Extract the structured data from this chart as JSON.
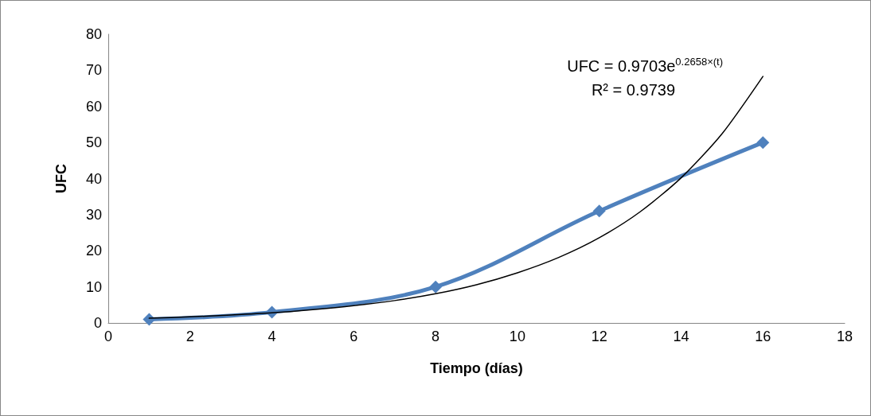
{
  "chart_data": {
    "type": "line",
    "xlabel": "Tiempo (días)",
    "ylabel": "UFC",
    "xlim": [
      0,
      18
    ],
    "xticks": [
      0,
      2,
      4,
      6,
      8,
      10,
      12,
      14,
      16,
      18
    ],
    "ylim": [
      0,
      80
    ],
    "yticks": [
      0,
      10,
      20,
      30,
      40,
      50,
      60,
      70,
      80
    ],
    "grid": false,
    "annotations": [
      "UFC = 0.9703e$^{0.2658×(t)}$",
      "R² = 0.9739"
    ],
    "series": [
      {
        "color": "#4f81bd",
        "x": [
          1,
          4,
          8,
          12,
          16
        ],
        "values": [
          1,
          3,
          10,
          31,
          50
        ],
        "marker": "diamond",
        "line_style": "solid"
      },
      {
        "color": "#000000",
        "x": [
          1,
          2,
          3,
          4,
          5,
          6,
          7,
          8,
          9,
          10,
          11,
          12,
          13,
          14,
          15,
          16
        ],
        "values": [
          1.3,
          1.7,
          2.2,
          2.8,
          3.7,
          4.8,
          6.2,
          8.1,
          10.6,
          13.9,
          18.1,
          23.6,
          30.8,
          40.2,
          52.4,
          68.3
        ],
        "marker": "none",
        "line_style": "solid"
      }
    ]
  }
}
